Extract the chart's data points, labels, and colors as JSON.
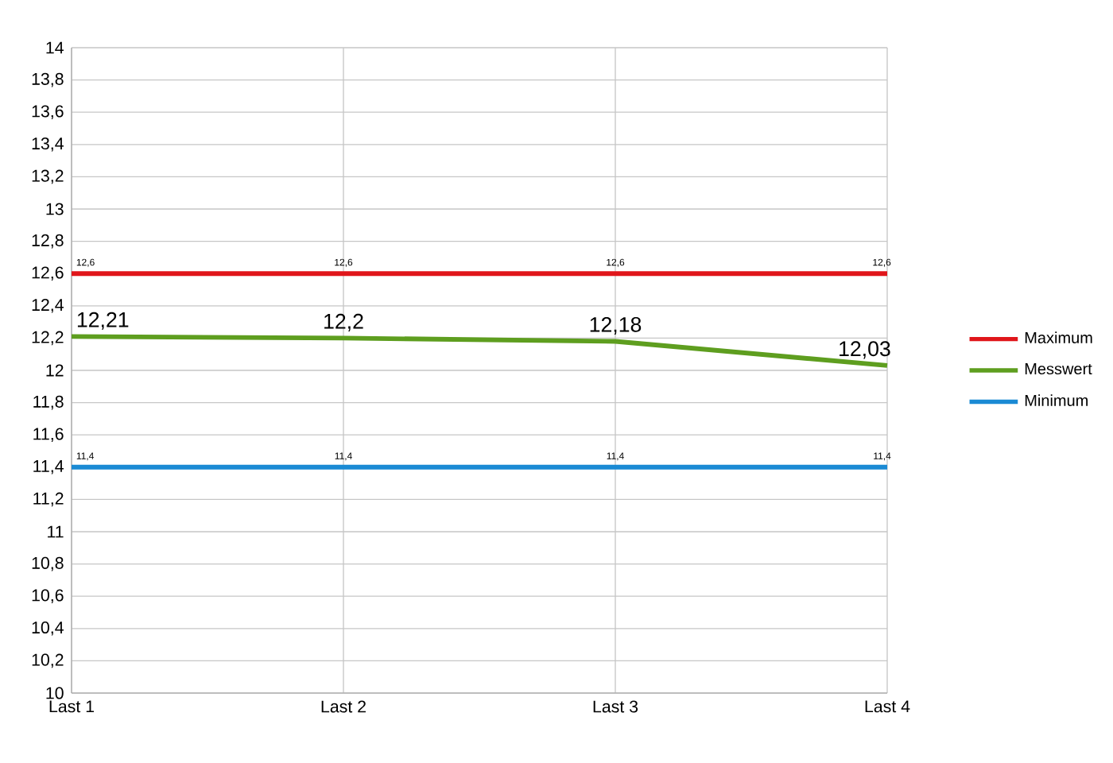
{
  "chart_data": {
    "type": "line",
    "categories": [
      "Last 1",
      "Last 2",
      "Last 3",
      "Last 4"
    ],
    "series": [
      {
        "name": "Maximum",
        "color": "#e0161b",
        "values": [
          12.6,
          12.6,
          12.6,
          12.6
        ],
        "value_labels": [
          "12,6",
          "12,6",
          "12,6",
          "12,6"
        ]
      },
      {
        "name": "Messwert",
        "color": "#5e9e1f",
        "values": [
          12.21,
          12.2,
          12.18,
          12.03
        ],
        "value_labels": [
          "12,21",
          "12,2",
          "12,18",
          "12,03"
        ]
      },
      {
        "name": "Minimum",
        "color": "#1a8ad4",
        "values": [
          11.4,
          11.4,
          11.4,
          11.4
        ],
        "value_labels": [
          "11,4",
          "11,4",
          "11,4",
          "11,4"
        ]
      }
    ],
    "ylim": [
      10,
      14
    ],
    "yticks": [
      {
        "value": 10,
        "label": "10"
      },
      {
        "value": 10.2,
        "label": "10,2"
      },
      {
        "value": 10.4,
        "label": "10,4"
      },
      {
        "value": 10.6,
        "label": "10,6"
      },
      {
        "value": 10.8,
        "label": "10,8"
      },
      {
        "value": 11,
        "label": "11"
      },
      {
        "value": 11.2,
        "label": "11,2"
      },
      {
        "value": 11.4,
        "label": "11,4"
      },
      {
        "value": 11.6,
        "label": "11,6"
      },
      {
        "value": 11.8,
        "label": "11,8"
      },
      {
        "value": 12,
        "label": "12"
      },
      {
        "value": 12.2,
        "label": "12,2"
      },
      {
        "value": 12.4,
        "label": "12,4"
      },
      {
        "value": 12.6,
        "label": "12,6"
      },
      {
        "value": 12.8,
        "label": "12,8"
      },
      {
        "value": 13,
        "label": "13"
      },
      {
        "value": 13.2,
        "label": "13,2"
      },
      {
        "value": 13.4,
        "label": "13,4"
      },
      {
        "value": 13.6,
        "label": "13,6"
      },
      {
        "value": 13.8,
        "label": "13,8"
      },
      {
        "value": 14,
        "label": "14"
      }
    ],
    "grid": true,
    "legend": "right",
    "marker": "none",
    "line_style": "solid"
  }
}
